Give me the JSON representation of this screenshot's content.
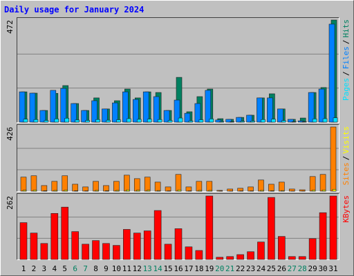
{
  "chart_data": [
    {
      "type": "bar",
      "title": "Daily usage for January 2024",
      "series": [
        {
          "name": "Pages",
          "color": "#00e0ff",
          "values": [
            14,
            12,
            8,
            15,
            18,
            10,
            8,
            12,
            9,
            11,
            16,
            13,
            14,
            12,
            8,
            19,
            6,
            11,
            15,
            3,
            2,
            4,
            5,
            12,
            14,
            7,
            2,
            2,
            15,
            16,
            20
          ]
        },
        {
          "name": "Files",
          "color": "#0080ff",
          "values": [
            140,
            134,
            54,
            147,
            156,
            86,
            54,
            99,
            61,
            89,
            140,
            105,
            140,
            118,
            54,
            102,
            41,
            86,
            147,
            10,
            13,
            22,
            32,
            112,
            112,
            61,
            13,
            6,
            137,
            153,
            453
          ]
        },
        {
          "name": "Hits",
          "color": "#008060",
          "values": [
            140,
            134,
            54,
            133,
            169,
            86,
            54,
            112,
            61,
            99,
            153,
            112,
            140,
            137,
            54,
            207,
            48,
            118,
            153,
            16,
            13,
            22,
            32,
            112,
            131,
            61,
            13,
            19,
            137,
            160,
            472
          ]
        }
      ],
      "legend_separator": "/",
      "ylim": [
        0,
        472
      ],
      "yticks": [
        472
      ],
      "grid_divisions": 3
    },
    {
      "type": "bar",
      "series": [
        {
          "name": "Sites",
          "color": "#ff8000",
          "values": [
            93,
            102,
            37,
            65,
            102,
            46,
            28,
            65,
            37,
            65,
            106,
            83,
            93,
            60,
            28,
            111,
            28,
            65,
            65,
            5,
            14,
            19,
            28,
            74,
            46,
            60,
            14,
            9,
            97,
            111,
            426
          ]
        },
        {
          "name": "Visits",
          "color": "#ffff00",
          "values": [
            6,
            7,
            3,
            5,
            7,
            3,
            2,
            5,
            3,
            5,
            8,
            6,
            6,
            4,
            2,
            8,
            2,
            5,
            5,
            1,
            1,
            2,
            2,
            5,
            3,
            4,
            1,
            1,
            7,
            8,
            12
          ]
        }
      ],
      "legend_separator": "/",
      "ylim": [
        0,
        426
      ],
      "yticks": [
        426
      ],
      "grid_divisions": 3
    },
    {
      "type": "bar",
      "categories": [
        "1",
        "2",
        "3",
        "4",
        "5",
        "6",
        "7",
        "8",
        "9",
        "10",
        "11",
        "12",
        "13",
        "14",
        "15",
        "16",
        "17",
        "18",
        "19",
        "20",
        "21",
        "22",
        "23",
        "24",
        "25",
        "26",
        "27",
        "28",
        "29",
        "30",
        "31"
      ],
      "highlight_indices": [
        5,
        6,
        12,
        13,
        19,
        20,
        26,
        27
      ],
      "highlight_color": "#008060",
      "series": [
        {
          "name": "KBytes",
          "color": "#ff0000",
          "values": [
            152,
            109,
            66,
            190,
            216,
            115,
            63,
            78,
            66,
            58,
            124,
            109,
            118,
            202,
            63,
            127,
            52,
            37,
            262,
            9,
            12,
            20,
            32,
            72,
            256,
            95,
            12,
            12,
            86,
            193,
            262
          ]
        }
      ],
      "ylim": [
        0,
        262
      ],
      "yticks": [
        262
      ],
      "grid_divisions": 3
    }
  ]
}
